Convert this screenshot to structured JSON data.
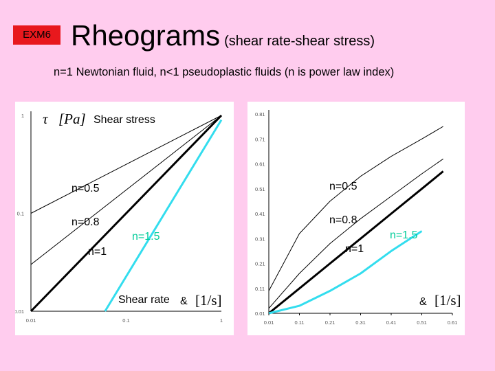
{
  "header": {
    "badge": "EXM6",
    "title": "Rheograms",
    "title_paren": "(shear rate-shear stress)",
    "subtitle": "n=1 Newtonian fluid, n<1 pseudoplastic fluids (n is power law index)"
  },
  "colors": {
    "background": "#ffccee",
    "badge": "#e8181d",
    "cyan": "#33ddee",
    "label_green": "#00cc99"
  },
  "chart_data": [
    {
      "type": "line",
      "scale": "log-log",
      "xlim": [
        0.01,
        1
      ],
      "ylim": [
        0.01,
        1
      ],
      "x_ticks": [
        "0.01",
        "0.1",
        "1"
      ],
      "y_ticks": [
        "1",
        "0.1",
        "0.01"
      ],
      "ylabel_symbol": "τ",
      "ylabel_unit": "[Pa]",
      "ylabel_text": "Shear stress",
      "xlabel_text": "Shear rate",
      "xlabel_symbol": "&",
      "xlabel_unit": "[1/s]",
      "series": [
        {
          "name": "n=0.5",
          "x": [
            0.01,
            1
          ],
          "y": [
            0.1,
            1
          ]
        },
        {
          "name": "n=0.8",
          "x": [
            0.01,
            1
          ],
          "y": [
            0.03,
            1
          ]
        },
        {
          "name": "n=1",
          "x": [
            0.01,
            1
          ],
          "y": [
            0.01,
            1
          ]
        },
        {
          "name": "n=1.5",
          "x": [
            0.06,
            1
          ],
          "y": [
            0.01,
            0.9
          ]
        }
      ],
      "labels": {
        "n05": "n=0.5",
        "n08": "n=0.8",
        "n1": "n=1",
        "n15": "n=1.5"
      }
    },
    {
      "type": "line",
      "scale": "linear",
      "xlim": [
        0.01,
        0.61
      ],
      "ylim": [
        0.01,
        0.81
      ],
      "x_ticks": [
        "0.01",
        "0.11",
        "0.21",
        "0.31",
        "0.41",
        "0.51",
        "0.61"
      ],
      "y_ticks": [
        "0.81",
        "0.71",
        "0.61",
        "0.51",
        "0.41",
        "0.31",
        "0.21",
        "0.11",
        "0.01"
      ],
      "xlabel_symbol": "&",
      "xlabel_unit": "[1/s]",
      "series": [
        {
          "name": "n=0.5",
          "x": [
            0.01,
            0.11,
            0.21,
            0.31,
            0.41,
            0.51,
            0.58
          ],
          "y": [
            0.1,
            0.33,
            0.46,
            0.56,
            0.64,
            0.71,
            0.76
          ]
        },
        {
          "name": "n=0.8",
          "x": [
            0.01,
            0.11,
            0.21,
            0.31,
            0.41,
            0.51,
            0.58
          ],
          "y": [
            0.03,
            0.17,
            0.29,
            0.39,
            0.48,
            0.57,
            0.63
          ]
        },
        {
          "name": "n=1",
          "x": [
            0.01,
            0.11,
            0.21,
            0.31,
            0.41,
            0.51,
            0.58
          ],
          "y": [
            0.01,
            0.11,
            0.21,
            0.31,
            0.41,
            0.51,
            0.58
          ]
        },
        {
          "name": "n=1.5",
          "x": [
            0.01,
            0.11,
            0.21,
            0.31,
            0.41,
            0.51
          ],
          "y": [
            0.01,
            0.04,
            0.1,
            0.17,
            0.26,
            0.34
          ]
        }
      ],
      "labels": {
        "n05": "n=0.5",
        "n08": "n=0.8",
        "n1": "n=1",
        "n15": "n=1.5"
      }
    }
  ]
}
